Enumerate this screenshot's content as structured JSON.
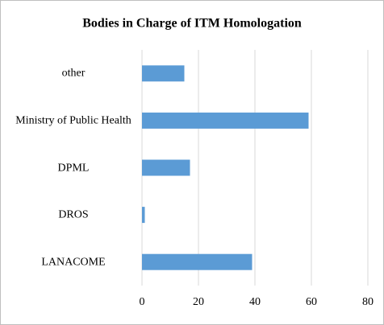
{
  "chart_data": {
    "type": "bar",
    "orientation": "horizontal",
    "title": "Bodies in Charge of ITM Homologation",
    "categories": [
      "other",
      "Ministry of Public Health",
      "DPML",
      "DROS",
      "LANACOME"
    ],
    "values": [
      15,
      59,
      17,
      1,
      39
    ],
    "color": "#5b9bd5",
    "xlim": [
      0,
      80
    ],
    "xticks": [
      0,
      20,
      40,
      60,
      80
    ],
    "grid": true
  }
}
